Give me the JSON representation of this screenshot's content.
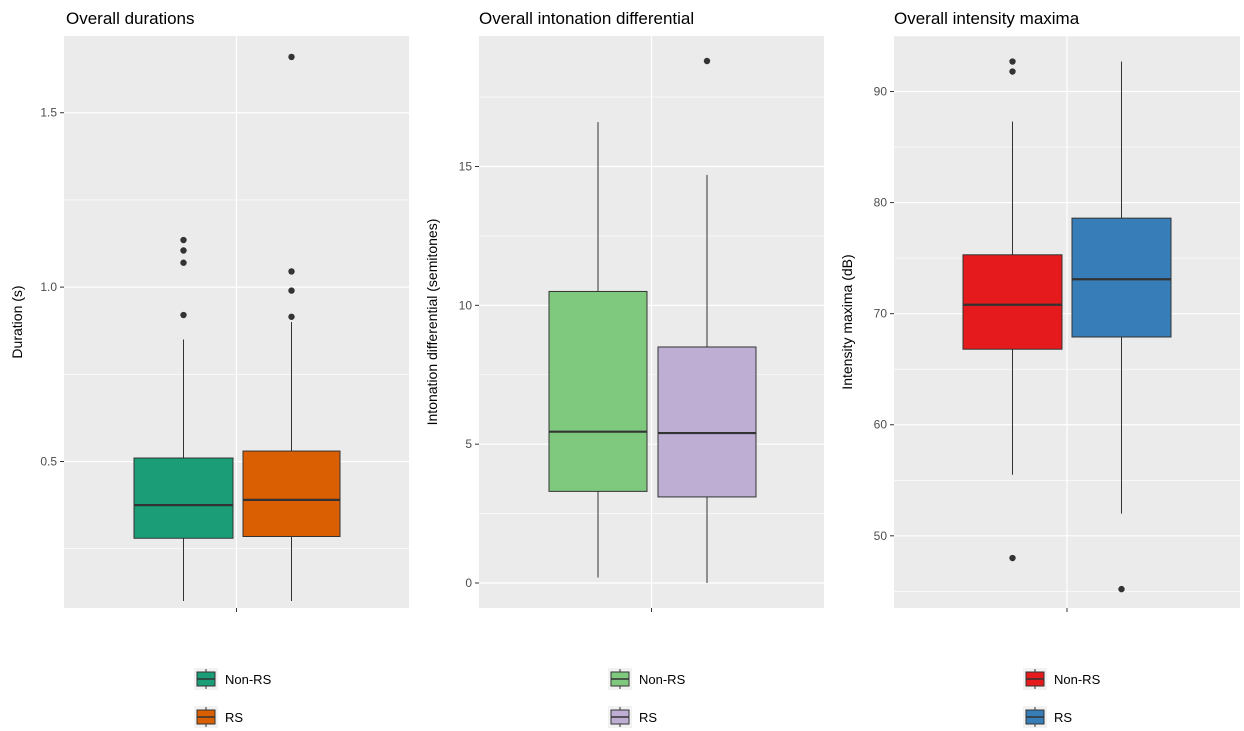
{
  "chart_data": [
    {
      "type": "box",
      "title": "Overall durations",
      "ylabel": "Duration (s)",
      "ylim": [
        0.08,
        1.72
      ],
      "yticks": [
        0.5,
        1.0,
        1.5
      ],
      "ytick_labels": [
        "0.5",
        "1.0",
        "1.5"
      ],
      "grid": true,
      "legend_position": "bottom",
      "series": [
        {
          "name": "Non-RS",
          "color": "#1b9e77",
          "whisker_low": 0.1,
          "q1": 0.28,
          "median": 0.375,
          "q3": 0.51,
          "whisker_high": 0.85,
          "outliers": [
            0.92,
            1.07,
            1.105,
            1.135
          ]
        },
        {
          "name": "RS",
          "color": "#d95f02",
          "whisker_low": 0.1,
          "q1": 0.285,
          "median": 0.39,
          "q3": 0.53,
          "whisker_high": 0.9,
          "outliers": [
            0.915,
            0.99,
            1.045,
            1.66
          ]
        }
      ]
    },
    {
      "type": "box",
      "title": "Overall intonation differential",
      "ylabel": "Intonation differential (semitones)",
      "ylim": [
        -0.9,
        19.7
      ],
      "yticks": [
        0,
        5,
        10,
        15
      ],
      "ytick_labels": [
        "0",
        "5",
        "10",
        "15"
      ],
      "grid": true,
      "legend_position": "bottom",
      "series": [
        {
          "name": "Non-RS",
          "color": "#7fc97f",
          "whisker_low": 0.2,
          "q1": 3.3,
          "median": 5.45,
          "q3": 10.5,
          "whisker_high": 16.6,
          "outliers": []
        },
        {
          "name": "RS",
          "color": "#beaed4",
          "whisker_low": 0.0,
          "q1": 3.1,
          "median": 5.4,
          "q3": 8.5,
          "whisker_high": 14.7,
          "outliers": [
            18.8
          ]
        }
      ]
    },
    {
      "type": "box",
      "title": "Overall intensity maxima",
      "ylabel": "Intensity maxima (dB)",
      "ylim": [
        43.5,
        95.0
      ],
      "yticks": [
        50,
        60,
        70,
        80,
        90
      ],
      "ytick_labels": [
        "50",
        "60",
        "70",
        "80",
        "90"
      ],
      "grid": true,
      "legend_position": "bottom",
      "series": [
        {
          "name": "Non-RS",
          "color": "#e41a1c",
          "whisker_low": 55.5,
          "q1": 66.8,
          "median": 70.8,
          "q3": 75.3,
          "whisker_high": 87.3,
          "outliers": [
            48.0,
            91.8,
            92.7
          ]
        },
        {
          "name": "RS",
          "color": "#377eb8",
          "whisker_low": 52.0,
          "q1": 67.9,
          "median": 73.1,
          "q3": 78.6,
          "whisker_high": 92.7,
          "outliers": [
            45.2
          ]
        }
      ]
    }
  ]
}
